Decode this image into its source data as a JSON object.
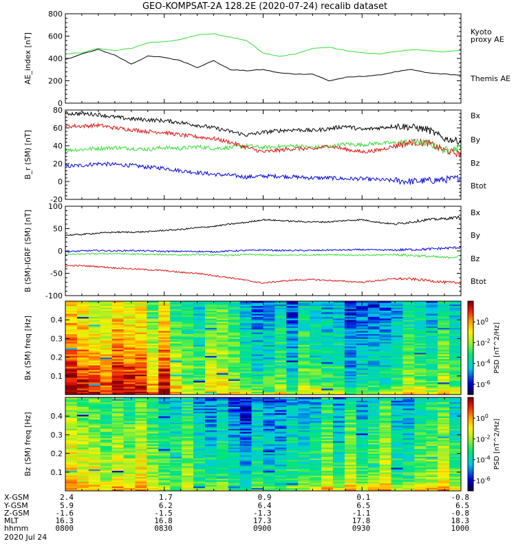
{
  "colors": {
    "black": "#000000",
    "green": "#33dd33",
    "red": "#dd1111",
    "blue": "#0000dd"
  },
  "title": "GEO-KOMPSAT-2A 128.2E (2020-07-24) recalib dataset",
  "chart_data": [
    {
      "type": "line",
      "ylabel": "AE_index [nT]",
      "ylim": [
        0,
        800
      ],
      "yticks": [
        "0",
        "200",
        "400",
        "600",
        "800"
      ],
      "x": [
        0,
        5,
        10,
        15,
        20,
        25,
        30,
        35,
        40,
        45,
        50,
        55,
        60,
        65,
        70,
        75,
        80,
        85,
        90,
        95,
        100,
        105,
        110,
        115,
        120
      ],
      "series": [
        {
          "name": "Kyoto proxy AE",
          "legend": "Kyoto\nproxy AE",
          "color": "#33dd33",
          "values": [
            440,
            450,
            490,
            470,
            490,
            540,
            550,
            570,
            610,
            620,
            590,
            560,
            450,
            420,
            440,
            490,
            500,
            470,
            450,
            440,
            460,
            480,
            470,
            460,
            470
          ]
        },
        {
          "name": "Themis AE",
          "legend": "Themis AE",
          "color": "#000000",
          "values": [
            390,
            440,
            480,
            430,
            350,
            420,
            410,
            380,
            320,
            380,
            300,
            290,
            300,
            270,
            260,
            260,
            200,
            230,
            240,
            250,
            280,
            300,
            270,
            260,
            250
          ]
        }
      ]
    },
    {
      "type": "line",
      "ylabel": "B_r (SM) [nT]",
      "ylim": [
        -20,
        80
      ],
      "yticks": [
        "-20",
        "0",
        "20",
        "40",
        "60",
        "80"
      ],
      "x": [
        0,
        5,
        10,
        15,
        20,
        25,
        30,
        35,
        40,
        45,
        50,
        55,
        60,
        65,
        70,
        75,
        80,
        85,
        90,
        95,
        100,
        105,
        110,
        115,
        120
      ],
      "series": [
        {
          "name": "Bx",
          "color": "#0000dd",
          "values": [
            17,
            18,
            20,
            19,
            18,
            16,
            15,
            12,
            10,
            8,
            7,
            5,
            6,
            6,
            5,
            4,
            4,
            3,
            3,
            2,
            1,
            0,
            1,
            2,
            4
          ]
        },
        {
          "name": "By",
          "color": "#33dd33",
          "values": [
            35,
            36,
            37,
            38,
            37,
            36,
            38,
            37,
            39,
            37,
            38,
            40,
            38,
            39,
            40,
            38,
            39,
            42,
            41,
            43,
            43,
            44,
            43,
            35,
            38
          ]
        },
        {
          "name": "Bz",
          "color": "#dd1111",
          "values": [
            62,
            62,
            63,
            60,
            58,
            56,
            55,
            52,
            50,
            48,
            44,
            38,
            33,
            35,
            37,
            36,
            40,
            36,
            33,
            35,
            40,
            44,
            43,
            35,
            30
          ]
        },
        {
          "name": "Btot",
          "color": "#000000",
          "values": [
            76,
            76,
            75,
            72,
            70,
            69,
            68,
            66,
            63,
            60,
            56,
            52,
            55,
            57,
            58,
            57,
            59,
            62,
            58,
            60,
            62,
            61,
            58,
            48,
            45
          ]
        }
      ]
    },
    {
      "type": "line",
      "ylabel": "B (SM)-IGRF (SM) [nT]",
      "ylim": [
        -100,
        100
      ],
      "yticks": [
        "-100",
        "-50",
        "0",
        "50",
        "100"
      ],
      "x": [
        0,
        5,
        10,
        15,
        20,
        25,
        30,
        35,
        40,
        45,
        50,
        55,
        60,
        65,
        70,
        75,
        80,
        85,
        90,
        95,
        100,
        105,
        110,
        115,
        120
      ],
      "series": [
        {
          "name": "Bx",
          "color": "#0000dd",
          "values": [
            -2,
            0,
            1,
            0,
            1,
            0,
            -1,
            -1,
            -1,
            -2,
            0,
            1,
            2,
            1,
            1,
            1,
            2,
            2,
            3,
            2,
            2,
            3,
            4,
            6,
            8
          ]
        },
        {
          "name": "By",
          "color": "#33dd33",
          "values": [
            -8,
            -7,
            -6,
            -6,
            -7,
            -8,
            -8,
            -9,
            -8,
            -9,
            -10,
            -8,
            -9,
            -10,
            -9,
            -9,
            -8,
            -9,
            -10,
            -9,
            -8,
            -10,
            -12,
            -15,
            -12
          ]
        },
        {
          "name": "Bz",
          "color": "#dd1111",
          "values": [
            -33,
            -33,
            -35,
            -38,
            -40,
            -42,
            -44,
            -48,
            -50,
            -55,
            -60,
            -66,
            -72,
            -68,
            -65,
            -64,
            -66,
            -68,
            -70,
            -66,
            -62,
            -63,
            -66,
            -70,
            -72
          ]
        },
        {
          "name": "Btot",
          "color": "#000000",
          "values": [
            35,
            37,
            40,
            42,
            42,
            43,
            46,
            48,
            52,
            55,
            60,
            64,
            70,
            68,
            66,
            65,
            65,
            68,
            70,
            64,
            60,
            65,
            70,
            72,
            76
          ]
        }
      ]
    },
    {
      "type": "heatmap",
      "ylabel": "Bx (SM) freq [Hz]",
      "ylim": [
        0,
        0.5
      ],
      "yticks": [
        "0.1",
        "0.2",
        "0.3",
        "0.4"
      ],
      "zlabel": "PSD [nT^2/Hz]",
      "zlim_log": [
        -7,
        2
      ],
      "zticks": [
        "10^0",
        "10^-2",
        "10^-4",
        "10^-6"
      ],
      "note": "approximate log10 PSD; rows = frequency bins (0.0-0.5 Hz), cols = time bins 0800-1000",
      "time_profile": [
        1.0,
        0.8,
        0.6,
        0.9,
        1.0,
        0.9,
        0.8,
        0.6,
        0.2,
        0.0,
        -0.2,
        -0.4,
        -0.5,
        -0.6,
        -0.7,
        -0.8,
        -0.9,
        -0.9,
        -0.8,
        -0.7,
        -0.6,
        -0.5,
        -0.4,
        -0.3,
        -0.3
      ],
      "lowfreq_boost": [
        0.0,
        0.0,
        0.0,
        0.0,
        0.0,
        0.0,
        0.0,
        0.0,
        0.0,
        0.3,
        0.5,
        0.7,
        0.8,
        0.9,
        1.0,
        1.0,
        1.0,
        1.0,
        1.0,
        1.0,
        1.0,
        1.0,
        1.0,
        1.0,
        1.2
      ]
    },
    {
      "type": "heatmap",
      "ylabel": "Bz (SM) freq [Hz]",
      "ylim": [
        0,
        0.5
      ],
      "yticks": [
        "0.1",
        "0.2",
        "0.3",
        "0.4"
      ],
      "zlabel": "PSD [nT^2/Hz]",
      "zlim_log": [
        -7,
        2
      ],
      "zticks": [
        "10^0",
        "10^-2",
        "10^-4",
        "10^-6"
      ],
      "note": "approximate log10 PSD; rows = frequency bins (0.0-0.5 Hz), cols = time bins 0800-1000",
      "time_profile": [
        0.3,
        0.4,
        0.5,
        0.4,
        0.3,
        0.1,
        -0.3,
        -0.6,
        -0.8,
        -0.9,
        -1.0,
        -1.0,
        -1.0,
        -0.9,
        -0.9,
        -0.8,
        -0.6,
        -0.5,
        -0.4,
        -0.3,
        -0.3,
        -0.3,
        -0.2,
        -0.2,
        -0.1
      ],
      "lowfreq_boost": [
        0.6,
        0.7,
        0.8,
        0.8,
        0.7,
        0.5,
        0.3,
        0.2,
        0.2,
        0.3,
        0.3,
        0.3,
        0.4,
        0.5,
        0.6,
        0.7,
        0.8,
        0.9,
        1.0,
        1.0,
        1.0,
        1.0,
        1.0,
        1.0,
        1.1
      ]
    }
  ],
  "ephemeris": {
    "labels": [
      "X-GSM",
      "Y-GSM",
      "Z-GSM",
      "MLT",
      "hhmm"
    ],
    "date": "2020 Jul 24",
    "columns": [
      {
        "time_min": 0,
        "values": [
          "2.4",
          "5.9",
          "-1.6",
          "16.3",
          "0800"
        ]
      },
      {
        "time_min": 30,
        "values": [
          "1.7",
          "6.2",
          "-1.5",
          "16.8",
          "0830"
        ]
      },
      {
        "time_min": 60,
        "values": [
          "0.9",
          "6.4",
          "-1.3",
          "17.3",
          "0900"
        ]
      },
      {
        "time_min": 90,
        "values": [
          "0.1",
          "6.5",
          "-1.1",
          "17.8",
          "0930"
        ]
      },
      {
        "time_min": 120,
        "values": [
          "-0.8",
          "6.5",
          "-0.8",
          "18.3",
          "1000"
        ]
      }
    ]
  }
}
